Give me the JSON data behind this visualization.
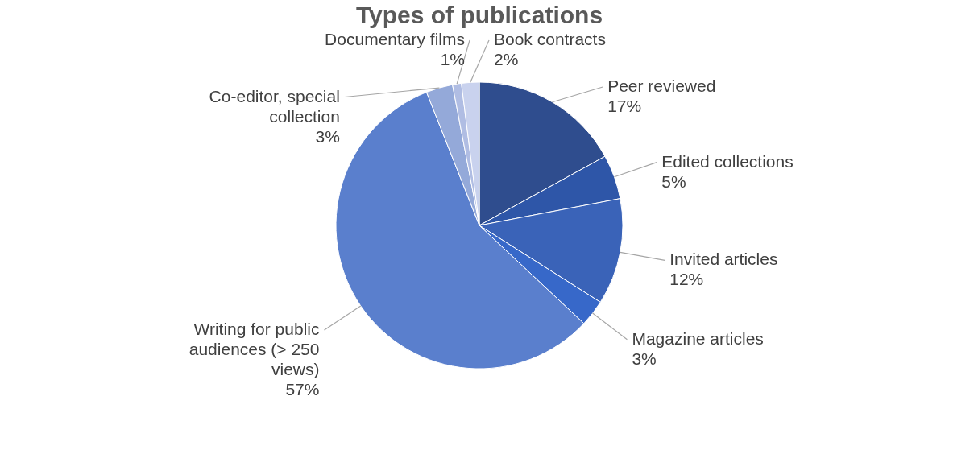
{
  "chart_data": {
    "type": "pie",
    "title": "Types of publications",
    "categories": [
      "Peer reviewed",
      "Edited collections",
      "Invited articles",
      "Magazine articles",
      "Writing for public audiences (> 250 views)",
      "Co-editor, special collection",
      "Documentary films",
      "Book contracts"
    ],
    "values": [
      17,
      5,
      12,
      3,
      57,
      3,
      1,
      2
    ],
    "value_labels": [
      "17%",
      "5%",
      "12%",
      "3%",
      "57%",
      "3%",
      "1%",
      "2%"
    ],
    "colors": [
      "#2f4d8e",
      "#2e56a8",
      "#3a63b8",
      "#3768c9",
      "#5a7fcd",
      "#94a9d9",
      "#b0bde3",
      "#c9d2ee"
    ],
    "legend": false
  }
}
